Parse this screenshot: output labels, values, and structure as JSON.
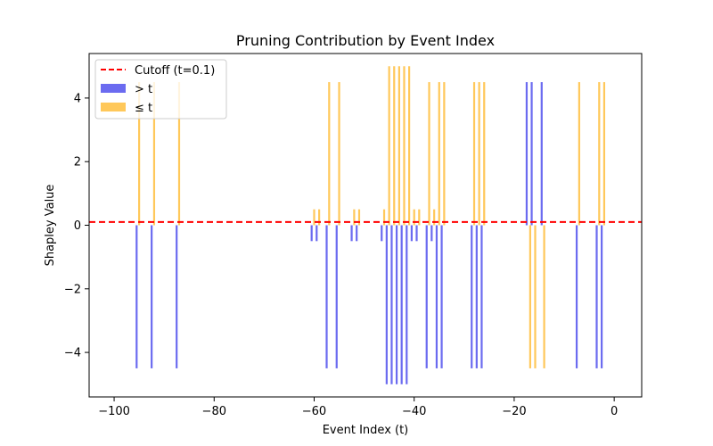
{
  "chart_data": {
    "type": "bar",
    "title": "Pruning Contribution by Event Index",
    "xlabel": "Event Index (t)",
    "ylabel": "Shapley Value",
    "xlim": [
      -105,
      5.5
    ],
    "ylim": [
      -5.4,
      5.4
    ],
    "xticks": [
      -100,
      -80,
      -60,
      -40,
      -20,
      0
    ],
    "xtick_labels": [
      "−100",
      "−80",
      "−60",
      "−40",
      "−20",
      "0"
    ],
    "yticks": [
      -4,
      -2,
      0,
      2,
      4
    ],
    "ytick_labels": [
      "−4",
      "−2",
      "0",
      "2",
      "4"
    ],
    "grid": false,
    "legend_position": "top-left",
    "cutoff": {
      "name": "Cutoff (t=0.1)",
      "value": 0.1,
      "color": "#ff0000",
      "style": "dashed"
    },
    "series": [
      {
        "name": "> t",
        "color": "#6b6bf0",
        "x": [
          -95.5,
          -92.5,
          -87.5,
          -60.5,
          -59.5,
          -57.5,
          -55.5,
          -52.5,
          -51.5,
          -46.5,
          -45.5,
          -44.5,
          -43.5,
          -42.5,
          -41.5,
          -40.5,
          -39.5,
          -37.5,
          -36.5,
          -35.5,
          -34.5,
          -28.5,
          -27.5,
          -26.5,
          -17.5,
          -16.5,
          -14.5,
          -7.5,
          -3.5,
          -2.5
        ],
        "values": [
          -4.5,
          -4.5,
          -4.5,
          -0.5,
          -0.5,
          -4.5,
          -4.5,
          -0.5,
          -0.5,
          -0.5,
          -5.0,
          -5.0,
          -5.0,
          -5.0,
          -5.0,
          -0.5,
          -0.5,
          -4.5,
          -0.5,
          -4.5,
          -4.5,
          -4.5,
          -4.5,
          -4.5,
          4.5,
          4.5,
          4.5,
          -4.5,
          -4.5,
          -4.5
        ]
      },
      {
        "name": "≤ t",
        "color": "#ffc85a",
        "x": [
          -95.0,
          -92.0,
          -87.0,
          -60.0,
          -59.0,
          -57.0,
          -55.0,
          -52.0,
          -51.0,
          -46.0,
          -45.0,
          -44.0,
          -43.0,
          -42.0,
          -41.0,
          -40.0,
          -39.0,
          -37.0,
          -36.0,
          -35.0,
          -34.0,
          -28.0,
          -27.0,
          -26.0,
          -16.8,
          -15.8,
          -14.0,
          -7.0,
          -3.0,
          -2.0
        ],
        "values": [
          4.5,
          4.5,
          4.5,
          0.5,
          0.5,
          4.5,
          4.5,
          0.5,
          0.5,
          0.5,
          5.0,
          5.0,
          5.0,
          5.0,
          5.0,
          0.5,
          0.5,
          4.5,
          0.5,
          4.5,
          4.5,
          4.5,
          4.5,
          4.5,
          -4.5,
          -4.5,
          -4.5,
          4.5,
          4.5,
          4.5
        ]
      }
    ]
  }
}
